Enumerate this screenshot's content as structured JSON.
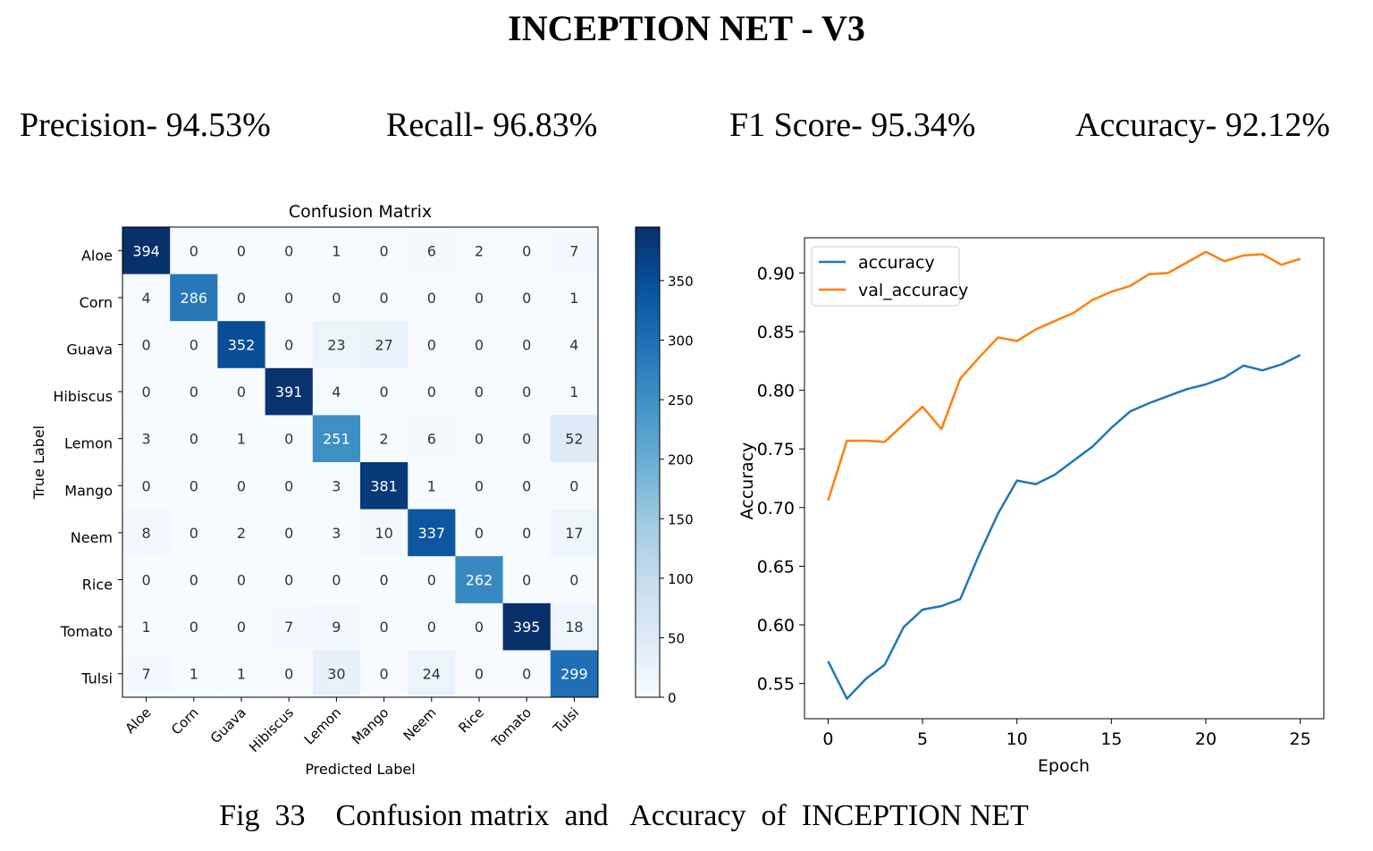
{
  "page": {
    "title": "INCEPTION NET - V3",
    "metrics": {
      "precision": "Precision- 94.53%",
      "recall": "Recall- 96.83%",
      "f1": "F1 Score- 95.34%",
      "accuracy": "Accuracy- 92.12%"
    },
    "caption": "Fig  33    Confusion matrix  and   Accuracy  of  INCEPTION NET"
  },
  "chart_data": [
    {
      "type": "heatmap",
      "title": "Confusion Matrix",
      "xlabel": "Predicted Label",
      "ylabel": "True Label",
      "labels": [
        "Aloe",
        "Corn",
        "Guava",
        "Hibiscus",
        "Lemon",
        "Mango",
        "Neem",
        "Rice",
        "Tomato",
        "Tulsi"
      ],
      "matrix": [
        [
          394,
          0,
          0,
          0,
          1,
          0,
          6,
          2,
          0,
          7
        ],
        [
          4,
          286,
          0,
          0,
          0,
          0,
          0,
          0,
          0,
          1
        ],
        [
          0,
          0,
          352,
          0,
          23,
          27,
          0,
          0,
          0,
          4
        ],
        [
          0,
          0,
          0,
          391,
          4,
          0,
          0,
          0,
          0,
          1
        ],
        [
          3,
          0,
          1,
          0,
          251,
          2,
          6,
          0,
          0,
          52
        ],
        [
          0,
          0,
          0,
          0,
          3,
          381,
          1,
          0,
          0,
          0
        ],
        [
          8,
          0,
          2,
          0,
          3,
          10,
          337,
          0,
          0,
          17
        ],
        [
          0,
          0,
          0,
          0,
          0,
          0,
          0,
          262,
          0,
          0
        ],
        [
          1,
          0,
          0,
          7,
          9,
          0,
          0,
          0,
          395,
          18
        ],
        [
          7,
          1,
          1,
          0,
          30,
          0,
          24,
          0,
          0,
          299
        ]
      ],
      "colorbar": {
        "min": 0,
        "max": 395,
        "ticks": [
          0,
          50,
          100,
          150,
          200,
          250,
          300,
          350
        ]
      },
      "colormap": "Blues"
    },
    {
      "type": "line",
      "xlabel": "Epoch",
      "ylabel": "Accuracy",
      "xlim": [
        -1.25,
        26.25
      ],
      "ylim": [
        0.52,
        0.93
      ],
      "xticks": [
        0,
        5,
        10,
        15,
        20,
        25
      ],
      "yticks": [
        0.55,
        0.6,
        0.65,
        0.7,
        0.75,
        0.8,
        0.85,
        0.9
      ],
      "legend": "top-left",
      "x": [
        0,
        1,
        2,
        3,
        4,
        5,
        6,
        7,
        8,
        9,
        10,
        11,
        12,
        13,
        14,
        15,
        16,
        17,
        18,
        19,
        20,
        21,
        22,
        23,
        24,
        25
      ],
      "series": [
        {
          "name": "accuracy",
          "color": "#1f77b4",
          "values": [
            0.569,
            0.537,
            0.554,
            0.566,
            0.598,
            0.613,
            0.616,
            0.622,
            0.66,
            0.695,
            0.723,
            0.72,
            0.728,
            0.74,
            0.752,
            0.768,
            0.782,
            0.789,
            0.795,
            0.801,
            0.805,
            0.811,
            0.821,
            0.817,
            0.822,
            0.83
          ]
        },
        {
          "name": "val_accuracy",
          "color": "#ff7f0e",
          "values": [
            0.706,
            0.757,
            0.757,
            0.756,
            0.771,
            0.786,
            0.767,
            0.81,
            0.828,
            0.845,
            0.842,
            0.852,
            0.859,
            0.866,
            0.877,
            0.884,
            0.889,
            0.899,
            0.9,
            0.909,
            0.918,
            0.91,
            0.915,
            0.916,
            0.907,
            0.912
          ]
        }
      ]
    }
  ]
}
